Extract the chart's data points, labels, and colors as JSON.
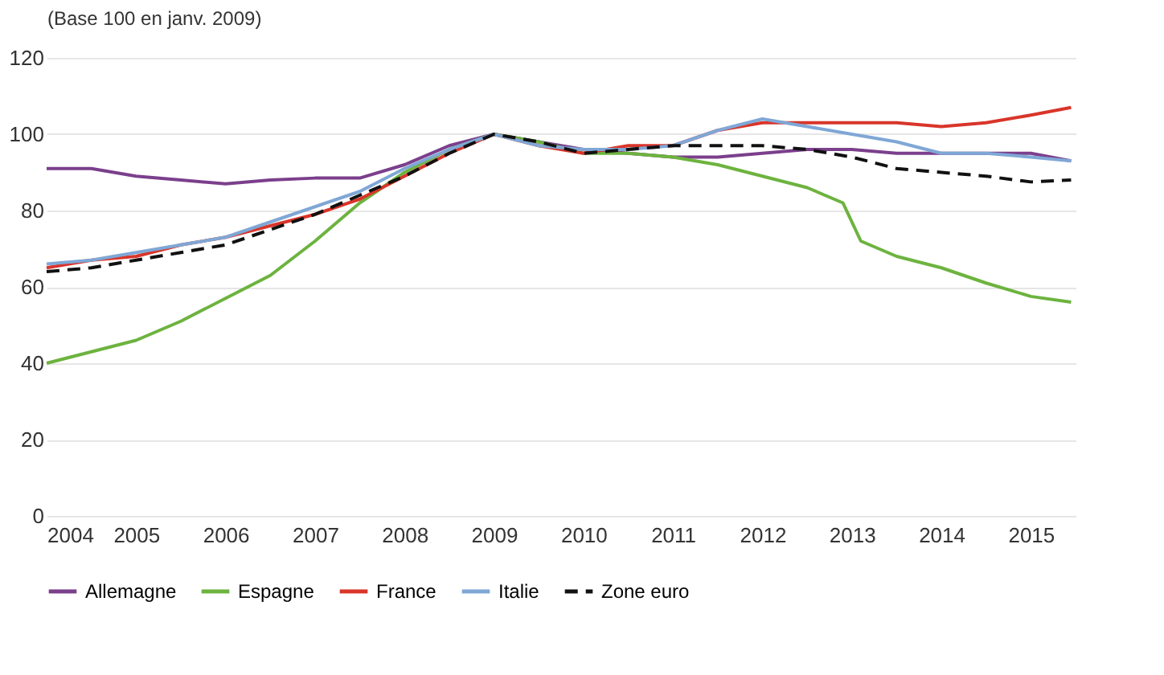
{
  "chart_data": {
    "type": "line",
    "ylabel": "(Base 100 en janv. 2009)",
    "xlim": [
      2004,
      2015.5
    ],
    "xticks": [
      2004,
      2005,
      2006,
      2007,
      2008,
      2009,
      2010,
      2011,
      2012,
      2013,
      2014,
      2015
    ],
    "ylim": [
      0,
      120
    ],
    "yticks": [
      0,
      20,
      40,
      60,
      80,
      100,
      120
    ],
    "grid": "y",
    "legend": "bottom",
    "marker": "none",
    "x": [
      2004,
      2004.5,
      2005,
      2005.5,
      2006,
      2006.5,
      2007,
      2007.5,
      2008,
      2008.5,
      2009,
      2009.5,
      2010,
      2010.5,
      2011,
      2011.5,
      2012,
      2012.5,
      2013,
      2013.5,
      2014,
      2014.5,
      2015,
      2015.45
    ],
    "series": [
      {
        "name": "Allemagne",
        "color": "#7b3f8c",
        "line_style": "solid",
        "values": [
          91,
          91,
          89,
          88,
          87,
          88,
          88.5,
          88.5,
          92,
          97,
          100,
          98,
          96,
          95,
          94,
          94,
          95,
          96,
          96,
          95,
          95,
          95,
          95,
          93
        ]
      },
      {
        "name": "Espagne",
        "color": "#6db33f",
        "line_style": "solid",
        "x": [
          2004,
          2004.5,
          2005,
          2005.5,
          2006,
          2006.5,
          2007,
          2007.5,
          2008,
          2008.5,
          2009,
          2009.5,
          2010,
          2010.5,
          2011,
          2011.5,
          2012,
          2012.5,
          2012.9,
          2013.1,
          2013.5,
          2014,
          2014.5,
          2015,
          2015.45
        ],
        "values": [
          40,
          43,
          46,
          51,
          57,
          63,
          72,
          82,
          90,
          96,
          100,
          98,
          95,
          95,
          94,
          92,
          89,
          86,
          82,
          72,
          68,
          65,
          61,
          57.5,
          56
        ]
      },
      {
        "name": "France",
        "color": "#d9352a",
        "line_style": "solid",
        "values": [
          65,
          67,
          68,
          71,
          73,
          76,
          79,
          83,
          89,
          95,
          100,
          97,
          95,
          97,
          97,
          101,
          103,
          103,
          103,
          103,
          102,
          103,
          105,
          107
        ]
      },
      {
        "name": "Italie",
        "color": "#7fa7d6",
        "line_style": "solid",
        "values": [
          66,
          67,
          69,
          71,
          73,
          77,
          81,
          85,
          91,
          96,
          100,
          97,
          96,
          96,
          97,
          101,
          104,
          102,
          100,
          98,
          95,
          95,
          94,
          93
        ]
      },
      {
        "name": "Zone euro",
        "color": "#111111",
        "line_style": "dashed",
        "values": [
          64,
          65,
          67,
          69,
          71,
          75,
          79,
          84,
          89,
          95,
          100,
          98,
          95,
          96,
          97,
          97,
          97,
          96,
          94,
          91,
          90,
          89,
          87.5,
          88
        ]
      }
    ]
  }
}
